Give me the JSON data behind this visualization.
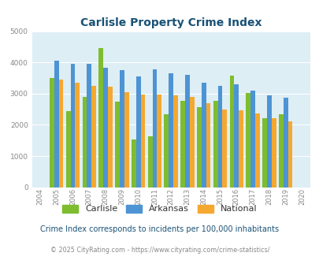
{
  "title": "Carlisle Property Crime Index",
  "plot_years": [
    2005,
    2006,
    2007,
    2008,
    2009,
    2010,
    2011,
    2012,
    2013,
    2014,
    2015,
    2016,
    2017,
    2018,
    2019
  ],
  "carlisle": [
    3500,
    2430,
    2890,
    4470,
    2750,
    1520,
    1620,
    2350,
    2770,
    2560,
    2770,
    3570,
    3010,
    2210,
    2340
  ],
  "arkansas": [
    4050,
    3960,
    3960,
    3840,
    3750,
    3560,
    3770,
    3660,
    3600,
    3340,
    3240,
    3290,
    3100,
    2950,
    2880
  ],
  "national": [
    3460,
    3360,
    3250,
    3220,
    3050,
    2970,
    2960,
    2940,
    2900,
    2700,
    2490,
    2460,
    2360,
    2220,
    2120
  ],
  "carlisle_color": "#7dbd2f",
  "arkansas_color": "#4d94d4",
  "national_color": "#f5a830",
  "bg_color": "#ddeef5",
  "ylim": [
    0,
    5000
  ],
  "yticks": [
    0,
    1000,
    2000,
    3000,
    4000,
    5000
  ],
  "all_xtick_years": [
    2004,
    2005,
    2006,
    2007,
    2008,
    2009,
    2010,
    2011,
    2012,
    2013,
    2014,
    2015,
    2016,
    2017,
    2018,
    2019,
    2020
  ],
  "subtitle": "Crime Index corresponds to incidents per 100,000 inhabitants",
  "footer": "© 2025 CityRating.com - https://www.cityrating.com/crime-statistics/",
  "legend_labels": [
    "Carlisle",
    "Arkansas",
    "National"
  ],
  "title_color": "#1a5276",
  "subtitle_color": "#1a5276",
  "footer_color": "#888888",
  "tick_color": "#888888"
}
